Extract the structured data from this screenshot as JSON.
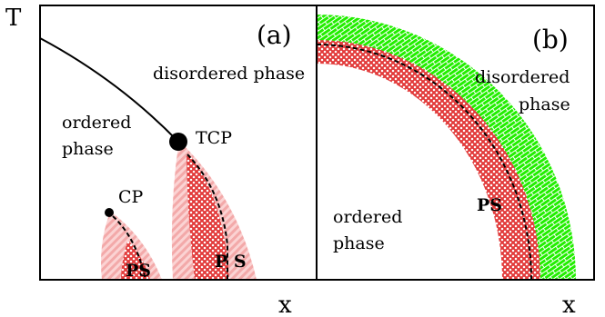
{
  "axis_label_left": "T",
  "axis_label_bottom_a": "x",
  "axis_label_bottom_b": "x",
  "panel_a": {
    "tag": "(a)",
    "disordered_label": "disordered phase",
    "ordered_label_line1": "ordered",
    "ordered_label_line2": "phase",
    "tcp_label": "TCP",
    "cp_label": "CP",
    "ps_label_1": "PS",
    "ps_label_2": "P S"
  },
  "panel_b": {
    "tag": "(b)",
    "disordered_label_line1": "disordered",
    "disordered_label_line2": "phase",
    "ordered_label_line1": "ordered",
    "ordered_label_line2": "phase",
    "ps_label": "PS"
  },
  "colors": {
    "ps_red": "#e23b3b",
    "ps_pink": "#f6b8b8",
    "green_band": "#22ee00",
    "line": "#000000",
    "background": "#ffffff"
  }
}
